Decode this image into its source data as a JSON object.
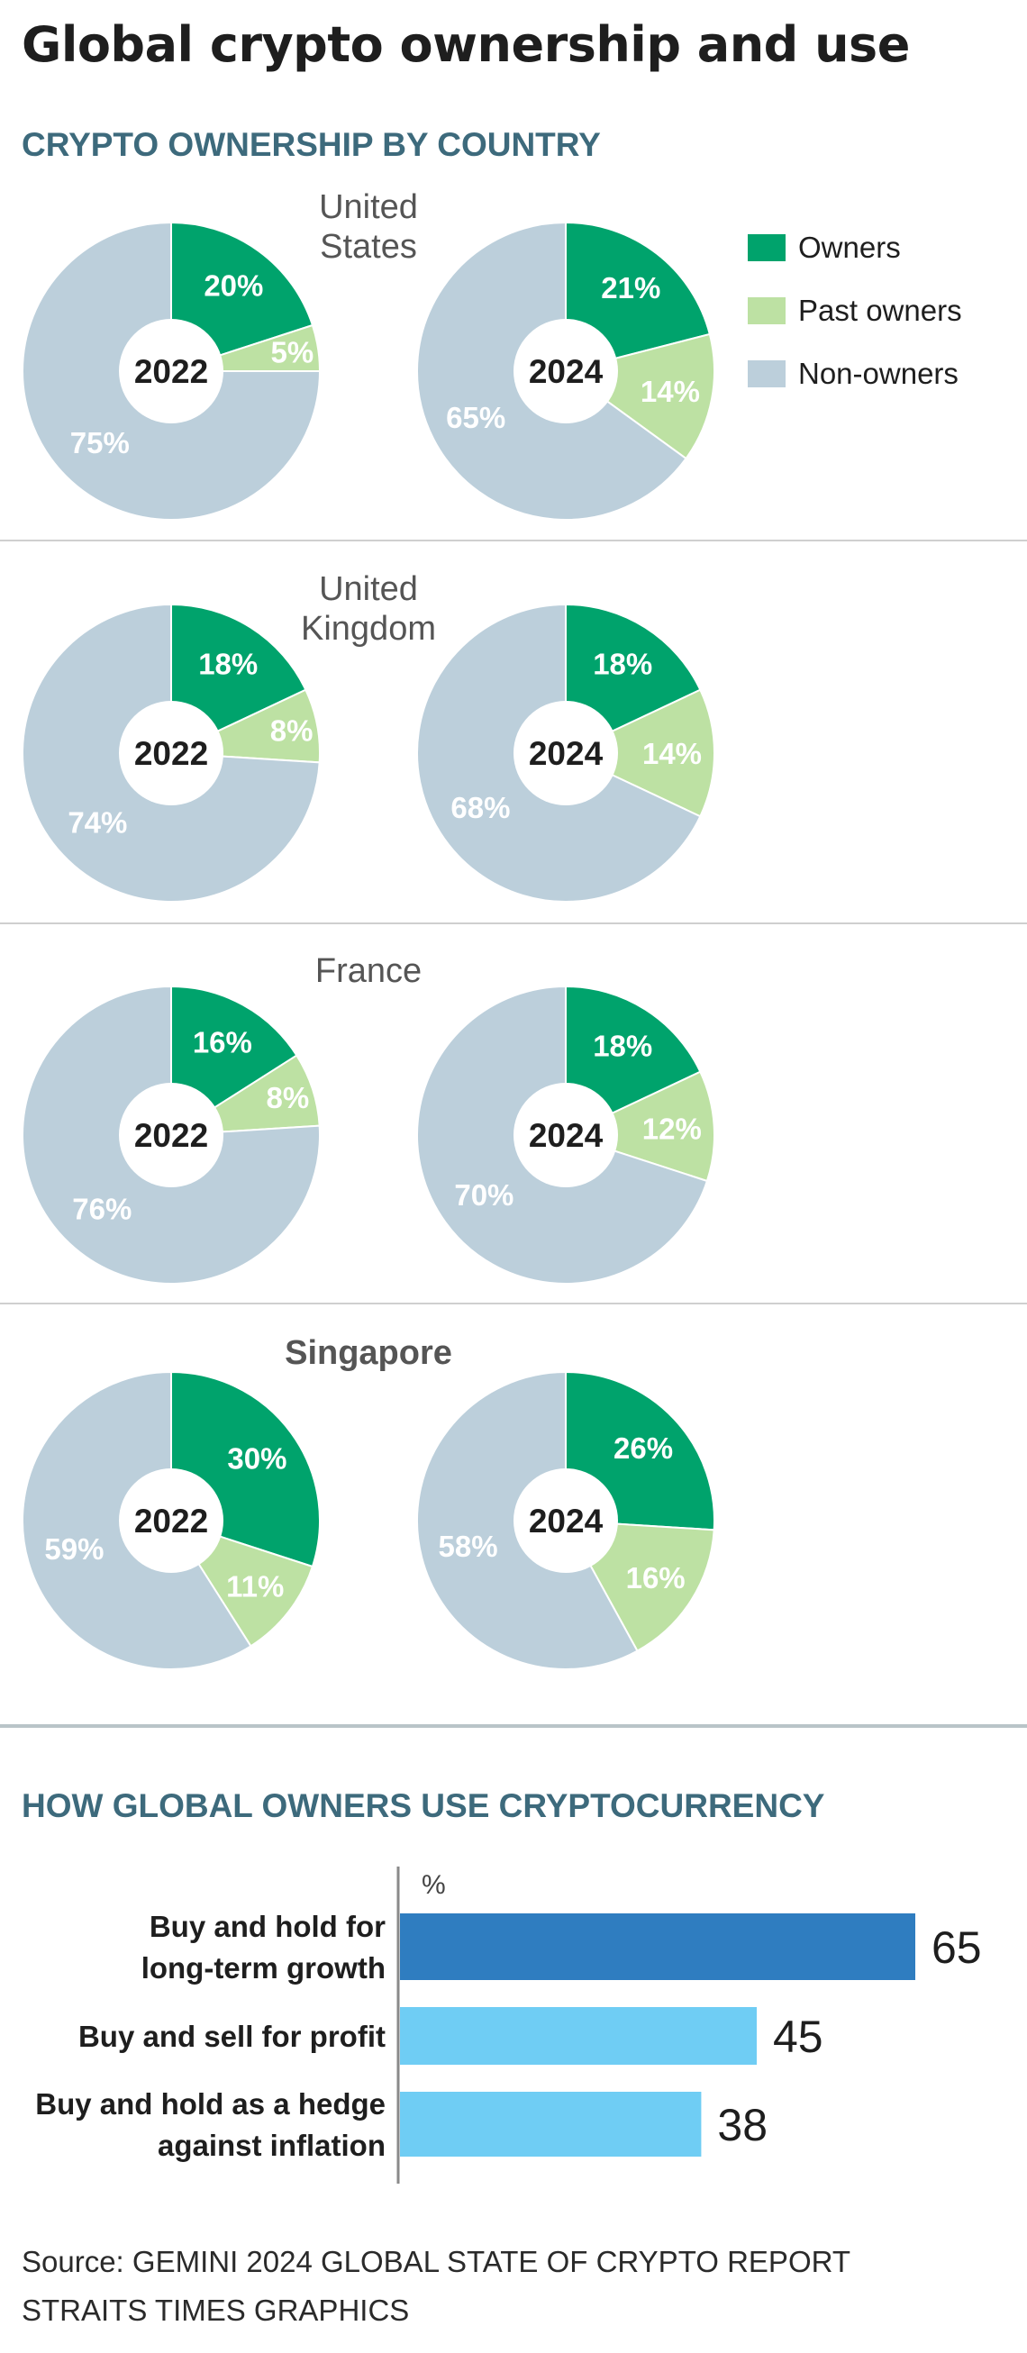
{
  "title": "Global crypto ownership and use",
  "ownership_section_title": "CRYPTO OWNERSHIP BY COUNTRY",
  "usage_section_title": "HOW GLOBAL OWNERS USE CRYPTOCURRENCY",
  "legend": [
    {
      "label": "Owners",
      "color": "#00a36c"
    },
    {
      "label": "Past owners",
      "color": "#bde1a3"
    },
    {
      "label": "Non-owners",
      "color": "#bccfdb"
    }
  ],
  "source_line1": "Source: GEMINI 2024 GLOBAL STATE OF CRYPTO REPORT",
  "source_line2": "STRAITS TIMES GRAPHICS",
  "chart_data": [
    {
      "type": "pie",
      "title": "CRYPTO OWNERSHIP BY COUNTRY",
      "slice_labels": [
        "Owners",
        "Past owners",
        "Non-owners"
      ],
      "countries": [
        {
          "name": "United States",
          "name_lines": [
            "United",
            "States"
          ],
          "bold": false,
          "charts": [
            {
              "year": "2022",
              "values": [
                20,
                5,
                75
              ]
            },
            {
              "year": "2024",
              "values": [
                21,
                14,
                65
              ]
            }
          ]
        },
        {
          "name": "United Kingdom",
          "name_lines": [
            "United",
            "Kingdom"
          ],
          "bold": false,
          "charts": [
            {
              "year": "2022",
              "values": [
                18,
                8,
                74
              ]
            },
            {
              "year": "2024",
              "values": [
                18,
                14,
                68
              ]
            }
          ]
        },
        {
          "name": "France",
          "name_lines": [
            "France"
          ],
          "bold": false,
          "charts": [
            {
              "year": "2022",
              "values": [
                16,
                8,
                76
              ]
            },
            {
              "year": "2024",
              "values": [
                18,
                12,
                70
              ]
            }
          ]
        },
        {
          "name": "Singapore",
          "name_lines": [
            "Singapore"
          ],
          "bold": true,
          "charts": [
            {
              "year": "2022",
              "values": [
                30,
                11,
                59
              ]
            },
            {
              "year": "2024",
              "values": [
                26,
                16,
                58
              ]
            }
          ]
        }
      ]
    },
    {
      "type": "bar",
      "orientation": "horizontal",
      "title": "HOW GLOBAL OWNERS USE CRYPTOCURRENCY",
      "unit": "%",
      "categories": [
        [
          "Buy and hold for",
          "long-term growth"
        ],
        [
          "Buy and sell for profit"
        ],
        [
          "Buy and hold as a hedge",
          "against inflation"
        ]
      ],
      "values": [
        65,
        45,
        38
      ],
      "colors": [
        "#2f7dc0",
        "#6fcdf4",
        "#6fcdf4"
      ]
    }
  ]
}
